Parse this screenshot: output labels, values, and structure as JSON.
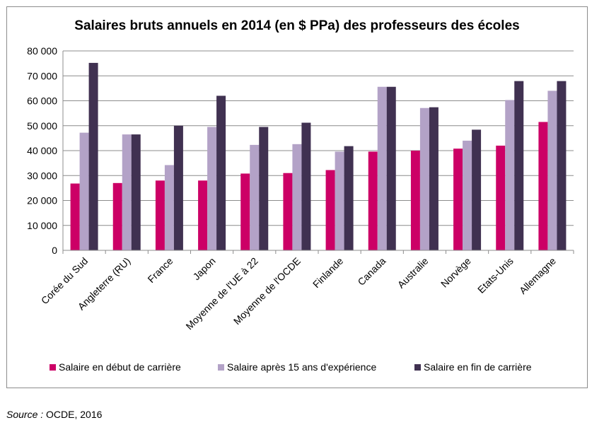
{
  "chart_data": {
    "type": "bar",
    "title": "Salaires bruts annuels en 2014 (en $ PPa) des professeurs des écoles",
    "xlabel": "",
    "ylabel": "",
    "ylim": [
      0,
      80000
    ],
    "y_ticks": [
      "0",
      "10 000",
      "20 000",
      "30 000",
      "40 000",
      "50 000",
      "60 000",
      "70 000",
      "80 000"
    ],
    "y_tick_values": [
      0,
      10000,
      20000,
      30000,
      40000,
      50000,
      60000,
      70000,
      80000
    ],
    "grid": true,
    "legend_position": "bottom",
    "categories": [
      "Corée du Sud",
      "Angleterre (RU)",
      "France",
      "Japon",
      "Moyenne de l'UE à 22",
      "Moyenne de l'OCDE",
      "Finlande",
      "Canada",
      "Australie",
      "Norvège",
      "Etats-Unis",
      "Allemagne"
    ],
    "series": [
      {
        "name": "Salaire en début de carrière",
        "color": "#cc0066",
        "values": [
          26800,
          27000,
          28000,
          28000,
          30800,
          31000,
          32200,
          39600,
          40000,
          40800,
          42000,
          51500
        ]
      },
      {
        "name": "Salaire après 15 ans d'expérience",
        "color": "#b3a2c7",
        "values": [
          47200,
          46500,
          34200,
          49500,
          42300,
          42600,
          39600,
          65600,
          57100,
          44000,
          60300,
          64000
        ]
      },
      {
        "name": "Salaire en fin de carrière",
        "color": "#403151",
        "values": [
          75200,
          46500,
          50000,
          62000,
          49500,
          51200,
          41800,
          65600,
          57400,
          48400,
          67900,
          67900
        ]
      }
    ]
  },
  "footer": {
    "source_label": "Source :",
    "source_text": " OCDE, 2016"
  }
}
